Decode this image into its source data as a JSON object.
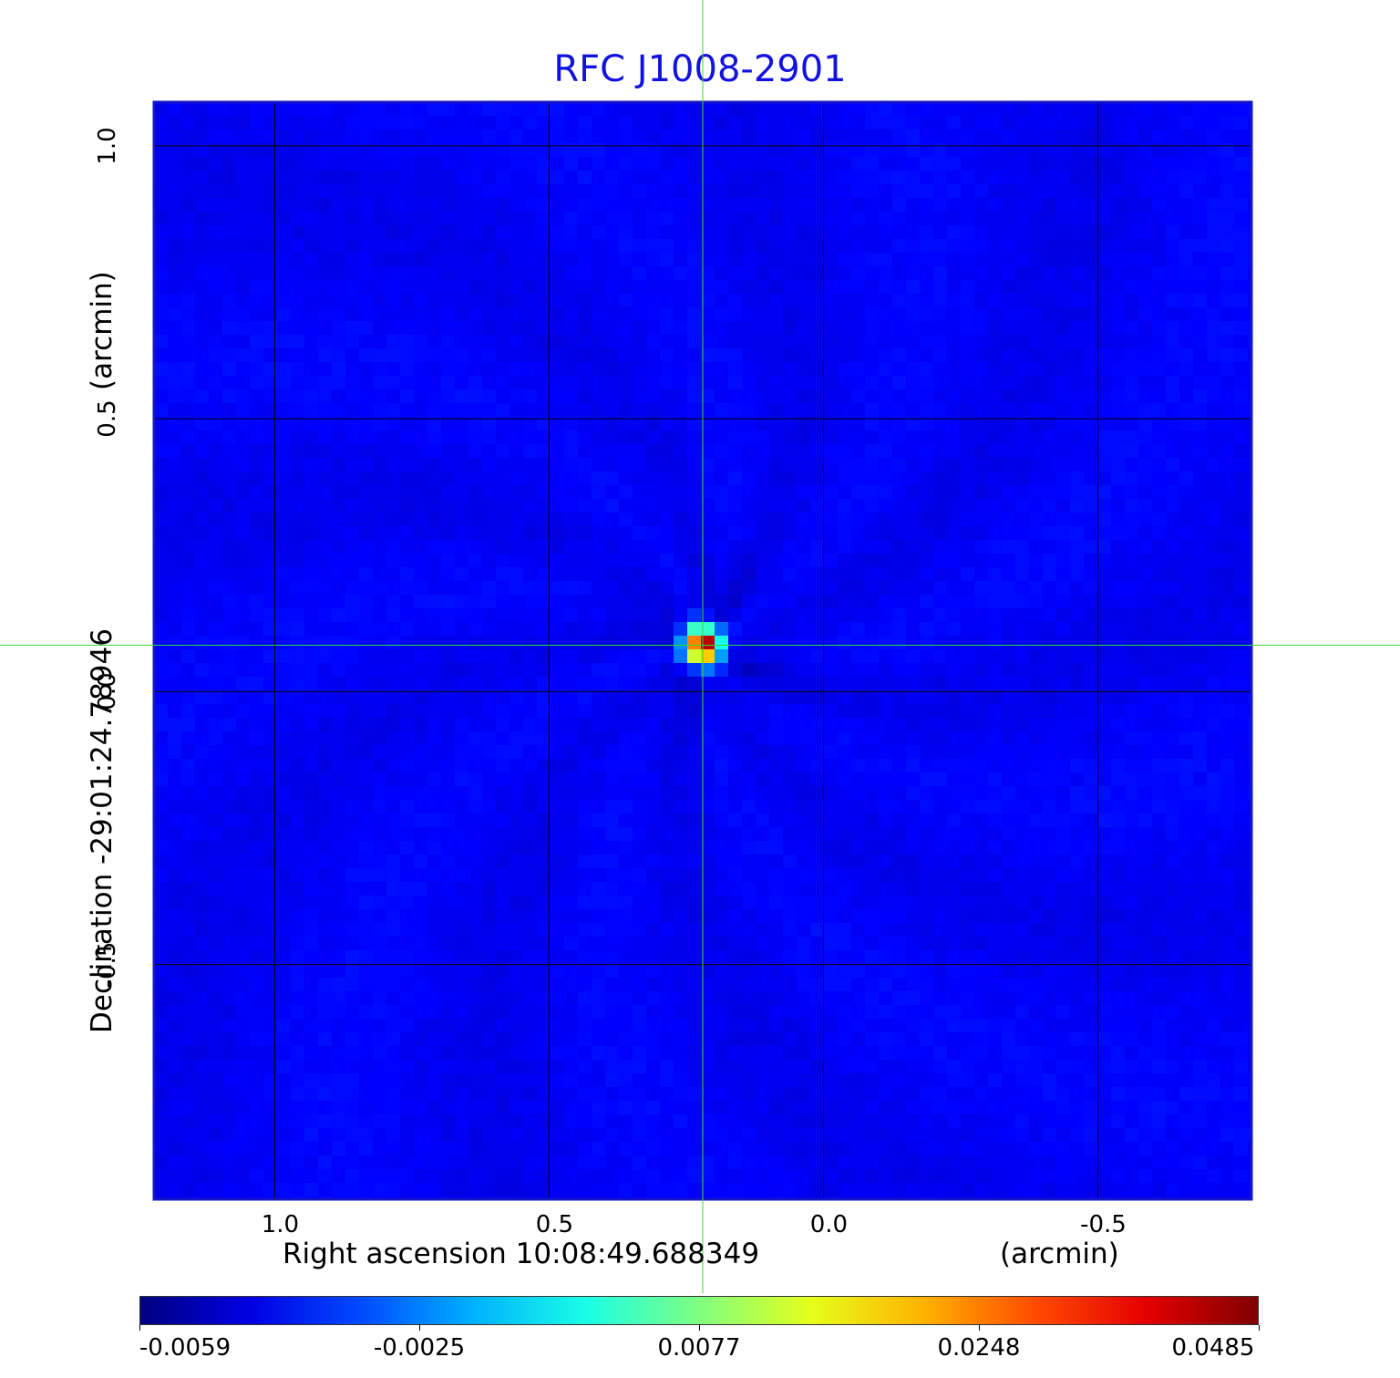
{
  "chart_data": {
    "type": "heatmap",
    "title": "RFC J1008-2901",
    "xlabel": "Right ascension  10:08:49.688349",
    "xunit": "(arcmin)",
    "ylabel": "Declination  -29:01:24.78946",
    "yunit": "(arcmin)",
    "x_ticks": [
      1.0,
      0.5,
      0.0,
      -0.5
    ],
    "x_tick_labels": [
      "1.0",
      "0.5",
      "0.0",
      "-0.5"
    ],
    "y_ticks": [
      1.0,
      0.5,
      0.0,
      -0.5
    ],
    "y_tick_labels": [
      "1.0",
      "0.5",
      "0.0",
      "-0.5"
    ],
    "xlim": [
      1.22,
      -0.78
    ],
    "ylim": [
      -0.93,
      1.08
    ],
    "grid": true,
    "crosshair": {
      "x": 0.22,
      "y": 0.085
    },
    "peak": {
      "x": 0.22,
      "y": 0.085,
      "value": 0.0485
    },
    "colorscale": "jet",
    "colorbar_ticks": [
      -0.0059,
      -0.0025,
      0.0077,
      0.0248,
      0.0485
    ],
    "colorbar_tick_labels": [
      "-0.0059",
      "-0.0025",
      "0.0077",
      "0.0248",
      "0.0485"
    ],
    "colorbar_range": [
      -0.0059,
      0.0485
    ],
    "colors": {
      "title": "#1212e0",
      "frame": "#1515c8",
      "grid": "#000000",
      "crosshair": "#33dd33",
      "background_field": "#12e8f4"
    }
  }
}
